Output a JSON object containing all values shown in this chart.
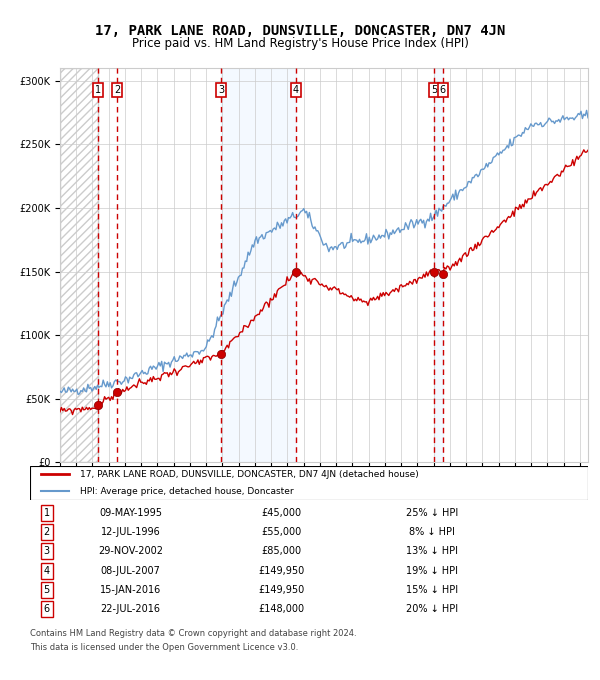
{
  "title": "17, PARK LANE ROAD, DUNSVILLE, DONCASTER, DN7 4JN",
  "subtitle": "Price paid vs. HM Land Registry's House Price Index (HPI)",
  "sales": [
    {
      "num": 1,
      "date": "09-MAY-1995",
      "year": 1995.35,
      "price": 45000,
      "pct": "25% ↓ HPI"
    },
    {
      "num": 2,
      "date": "12-JUL-1996",
      "year": 1996.53,
      "price": 55000,
      "pct": "8% ↓ HPI"
    },
    {
      "num": 3,
      "date": "29-NOV-2002",
      "year": 2002.91,
      "price": 85000,
      "pct": "13% ↓ HPI"
    },
    {
      "num": 4,
      "date": "08-JUL-2007",
      "year": 2007.52,
      "price": 149950,
      "pct": "19% ↓ HPI"
    },
    {
      "num": 5,
      "date": "15-JAN-2016",
      "year": 2016.04,
      "price": 149950,
      "pct": "15% ↓ HPI"
    },
    {
      "num": 6,
      "date": "22-JUL-2016",
      "year": 2016.56,
      "price": 148000,
      "pct": "20% ↓ HPI"
    }
  ],
  "legend_line1": "17, PARK LANE ROAD, DUNSVILLE, DONCASTER, DN7 4JN (detached house)",
  "legend_line2": "HPI: Average price, detached house, Doncaster",
  "footer1": "Contains HM Land Registry data © Crown copyright and database right 2024.",
  "footer2": "This data is licensed under the Open Government Licence v3.0.",
  "xmin": 1993.0,
  "xmax": 2025.5,
  "ymin": 0,
  "ymax": 310000,
  "hpi_color": "#6699cc",
  "price_color": "#cc0000",
  "bg_hatch_color": "#e8e8e8",
  "shade_color": "#ddeeff",
  "dashed_color": "#cc0000"
}
